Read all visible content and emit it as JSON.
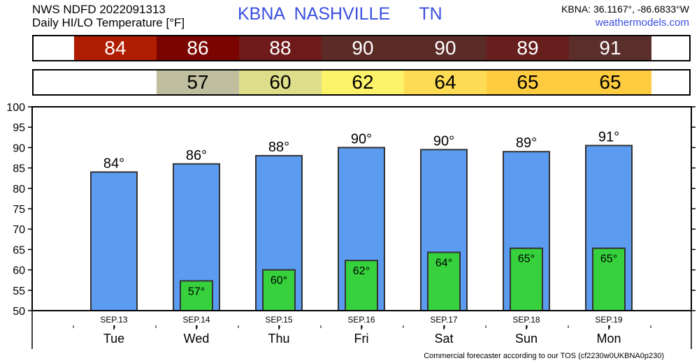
{
  "header": {
    "line1": "NWS NDFD 2022091313",
    "line2": "Daily HI/LO Temperature [°F]",
    "station": "KBNA  NASHVILLE      TN",
    "coords": "KBNA: 36.1167°, -86.6833°W",
    "site": "weathermodels.com"
  },
  "hi_strip": [
    {
      "value": "84",
      "color": "#b01c00",
      "text_color": "#ffffff"
    },
    {
      "value": "86",
      "color": "#7a0400",
      "text_color": "#ffffff"
    },
    {
      "value": "88",
      "color": "#6e1a1a",
      "text_color": "#ffffff"
    },
    {
      "value": "90",
      "color": "#5b2b27",
      "text_color": "#ffffff"
    },
    {
      "value": "90",
      "color": "#5b2b27",
      "text_color": "#ffffff"
    },
    {
      "value": "89",
      "color": "#671f1d",
      "text_color": "#ffffff"
    },
    {
      "value": "91",
      "color": "#5a2e2a",
      "text_color": "#ffffff"
    }
  ],
  "lo_strip": [
    {
      "value": "",
      "color": "#ffffff",
      "text_color": "#000000"
    },
    {
      "value": "57",
      "color": "#bfbe9f",
      "text_color": "#000000"
    },
    {
      "value": "60",
      "color": "#dedd8a",
      "text_color": "#000000"
    },
    {
      "value": "62",
      "color": "#fdf36a",
      "text_color": "#000000"
    },
    {
      "value": "64",
      "color": "#fedb55",
      "text_color": "#000000"
    },
    {
      "value": "65",
      "color": "#fecc40",
      "text_color": "#000000"
    },
    {
      "value": "65",
      "color": "#fecc40",
      "text_color": "#000000"
    }
  ],
  "chart_data": {
    "type": "bar",
    "categories": [
      "Tue",
      "Wed",
      "Thu",
      "Fri",
      "Sat",
      "Sun",
      "Mon"
    ],
    "dates": [
      "SEP.13",
      "SEP.14",
      "SEP.15",
      "SEP.16",
      "SEP.17",
      "SEP.18",
      "SEP.19"
    ],
    "series": [
      {
        "name": "HI",
        "values": [
          84,
          86,
          88,
          90,
          89.5,
          89,
          90.5
        ],
        "labels": [
          "84°",
          "86°",
          "88°",
          "90°",
          "90°",
          "89°",
          "91°"
        ],
        "color": "#5b9bf0"
      },
      {
        "name": "LO",
        "values": [
          null,
          57.3,
          60,
          62.3,
          64.3,
          65.3,
          65.3
        ],
        "labels": [
          "",
          "57°",
          "60°",
          "62°",
          "64°",
          "65°",
          "65°"
        ],
        "color": "#36d13c"
      }
    ],
    "ylim": [
      50,
      100
    ],
    "yticks": [
      50,
      55,
      60,
      65,
      70,
      75,
      80,
      85,
      90,
      95,
      100
    ],
    "grid": false
  },
  "footer": "Commercial forecaster according to our TOS (cf2230w0UKBNA0p230)"
}
